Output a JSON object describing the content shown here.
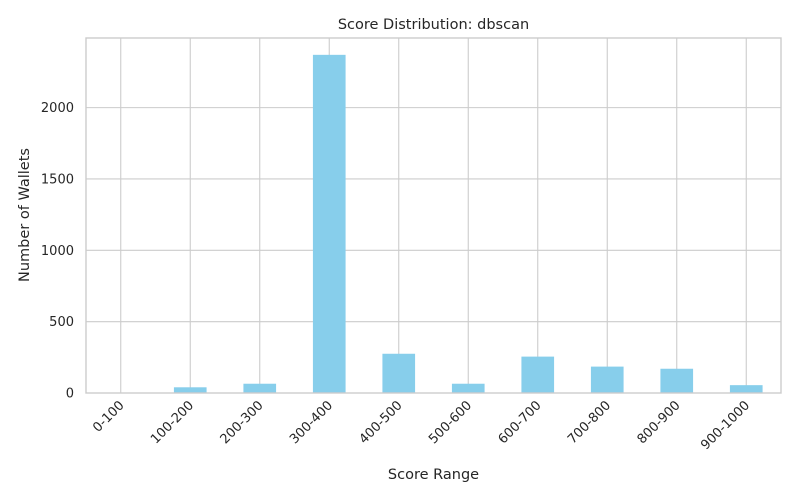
{
  "chart_data": {
    "type": "bar",
    "title": "Score Distribution: dbscan",
    "xlabel": "Score Range",
    "ylabel": "Number of Wallets",
    "categories": [
      "0-100",
      "100-200",
      "200-300",
      "300-400",
      "400-500",
      "500-600",
      "600-700",
      "700-800",
      "800-900",
      "900-1000"
    ],
    "values": [
      0,
      40,
      65,
      2370,
      275,
      65,
      255,
      185,
      170,
      55
    ],
    "ylim": [
      0,
      2488
    ],
    "yticks": [
      0,
      500,
      1000,
      1500,
      2000
    ],
    "grid": true,
    "bar_color": "#87ceeb",
    "grid_color": "#cccccc",
    "spine_color": "#cccccc"
  }
}
